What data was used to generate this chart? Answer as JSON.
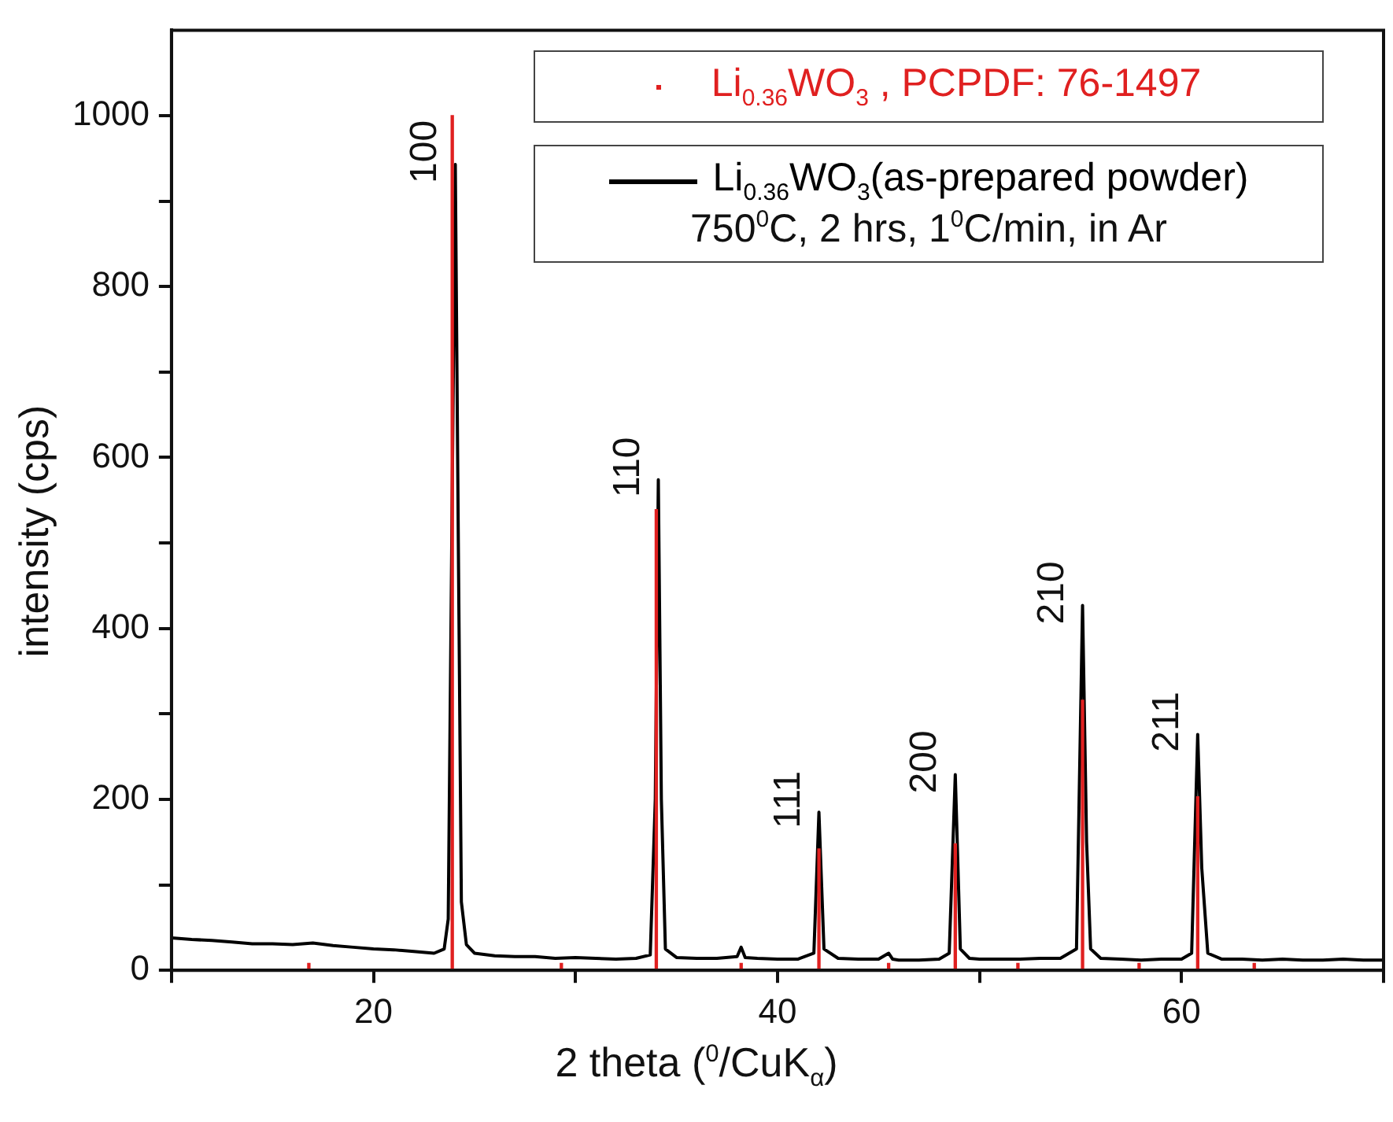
{
  "chart_data": {
    "type": "line",
    "xlabel": "2 theta ($^{0}$/CuK$_{α}$)",
    "ylabel": "intensity (cps)",
    "xlim": [
      10,
      70
    ],
    "ylim": [
      0,
      1100
    ],
    "xticks": [
      {
        "value": 10,
        "label": null
      },
      20,
      {
        "value": 30,
        "label": null
      },
      40,
      {
        "value": 50,
        "label": null
      },
      60,
      {
        "value": 70,
        "label": null
      }
    ],
    "yticks": [
      0,
      {
        "value": 100,
        "label": null
      },
      200,
      {
        "value": 300,
        "label": null
      },
      400,
      {
        "value": 500,
        "label": null
      },
      600,
      {
        "value": 700,
        "label": null
      },
      800,
      {
        "value": 900,
        "label": null
      },
      1000
    ],
    "legend": "top right",
    "marker": "none",
    "line_style": "solid",
    "series": [
      {
        "name": "Li$_{0.36}$WO$_{3}$ , PCPDF: 76-1497",
        "type": "bar",
        "color": "#e02020",
        "x": [
          16.8,
          23.9,
          29.3,
          34.0,
          38.2,
          42.05,
          45.5,
          48.8,
          51.9,
          55.1,
          57.9,
          60.8,
          63.6
        ],
        "values": [
          8,
          1000,
          8,
          539,
          8,
          142,
          8,
          148,
          8,
          316,
          8,
          203,
          8
        ]
      },
      {
        "name": "Li$_{0.36}$WO$_{3}$(as-prepared powder)",
        "color": "#000000",
        "x": [
          10,
          11,
          12,
          13,
          14,
          15,
          16,
          17,
          18,
          19,
          20,
          21,
          22,
          23,
          23.5,
          23.7,
          24.05,
          24.2,
          24.35,
          24.6,
          25,
          26,
          27,
          28,
          29,
          30,
          31,
          32,
          33,
          33.7,
          33.95,
          34.1,
          34.25,
          34.45,
          35,
          36,
          37,
          38,
          38.2,
          38.4,
          39,
          40,
          41,
          41.8,
          42.05,
          42.3,
          43,
          44,
          45,
          45.5,
          45.7,
          46,
          47,
          48,
          48.5,
          48.8,
          49.05,
          49.5,
          50,
          51,
          52,
          53,
          54,
          54.8,
          55.1,
          55.3,
          55.5,
          56,
          57,
          58,
          59,
          60,
          60.5,
          60.8,
          61.0,
          61.3,
          62,
          63,
          64,
          65,
          66,
          67,
          68,
          69,
          70
        ],
        "values": [
          38,
          36,
          35,
          33,
          31,
          31,
          30,
          32,
          29,
          27,
          25,
          24,
          22,
          20,
          25,
          60,
          943,
          500,
          80,
          30,
          20,
          17,
          16,
          16,
          14,
          15,
          14,
          13,
          14,
          18,
          200,
          574,
          200,
          25,
          15,
          14,
          14,
          16,
          27,
          15,
          14,
          13,
          13,
          20,
          185,
          25,
          14,
          13,
          13,
          20,
          13,
          12,
          12,
          13,
          20,
          229,
          25,
          14,
          13,
          13,
          13,
          14,
          14,
          25,
          427,
          150,
          25,
          14,
          13,
          12,
          13,
          13,
          20,
          276,
          120,
          20,
          13,
          13,
          12,
          13,
          12,
          12,
          13,
          12,
          12
        ]
      }
    ],
    "annotations": [
      "750$^{0}$C, 2 hrs, 1$^{0}$C/min, in Ar",
      {
        "text": "100",
        "x": 24.05,
        "y": 943
      },
      {
        "text": "110",
        "x": 34.1,
        "y": 574
      },
      {
        "text": "111",
        "x": 42.05,
        "y": 185
      },
      {
        "text": "200",
        "x": 48.8,
        "y": 229
      },
      {
        "text": "210",
        "x": 55.1,
        "y": 427
      },
      {
        "text": "211",
        "x": 60.8,
        "y": 276
      }
    ]
  }
}
